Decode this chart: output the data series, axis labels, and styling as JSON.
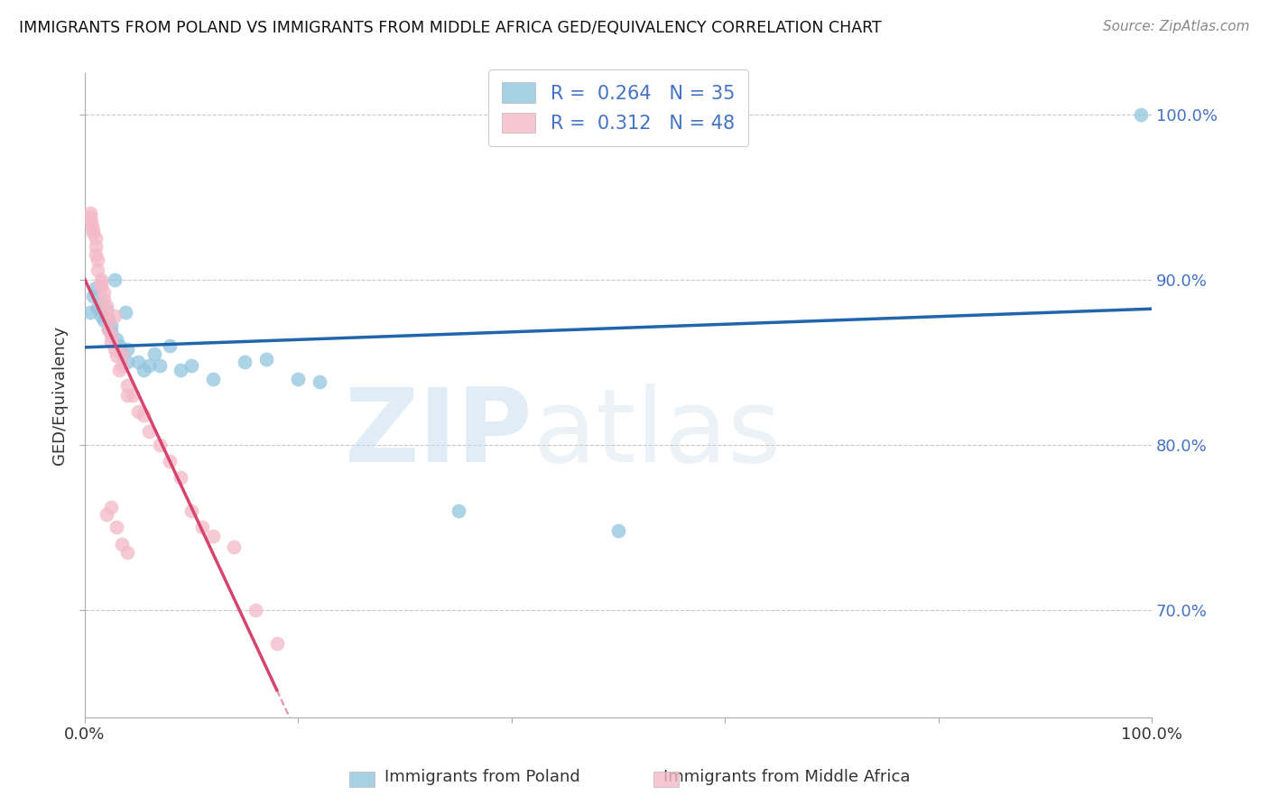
{
  "title": "IMMIGRANTS FROM POLAND VS IMMIGRANTS FROM MIDDLE AFRICA GED/EQUIVALENCY CORRELATION CHART",
  "source": "Source: ZipAtlas.com",
  "ylabel": "GED/Equivalency",
  "legend_label1": "Immigrants from Poland",
  "legend_label2": "Immigrants from Middle Africa",
  "R1": 0.264,
  "N1": 35,
  "R2": 0.312,
  "N2": 48,
  "color_blue": "#92c5de",
  "color_pink": "#f4b9c8",
  "line_blue": "#2166ac",
  "line_pink": "#d6446e",
  "watermark_zip": "ZIP",
  "watermark_atlas": "atlas",
  "xlim": [
    0.0,
    1.0
  ],
  "ylim": [
    0.635,
    1.025
  ],
  "blue_scatter_x": [
    0.005,
    0.008,
    0.01,
    0.012,
    0.015,
    0.015,
    0.018,
    0.02,
    0.022,
    0.022,
    0.025,
    0.025,
    0.028,
    0.03,
    0.032,
    0.035,
    0.038,
    0.04,
    0.04,
    0.05,
    0.055,
    0.06,
    0.065,
    0.07,
    0.08,
    0.09,
    0.1,
    0.12,
    0.15,
    0.17,
    0.2,
    0.22,
    0.35,
    0.5,
    0.99
  ],
  "blue_scatter_y": [
    0.88,
    0.89,
    0.895,
    0.883,
    0.878,
    0.886,
    0.875,
    0.882,
    0.87,
    0.876,
    0.872,
    0.868,
    0.9,
    0.864,
    0.86,
    0.856,
    0.88,
    0.85,
    0.858,
    0.85,
    0.845,
    0.848,
    0.855,
    0.848,
    0.86,
    0.845,
    0.848,
    0.84,
    0.85,
    0.852,
    0.84,
    0.838,
    0.76,
    0.748,
    1.0
  ],
  "pink_scatter_x": [
    0.005,
    0.005,
    0.006,
    0.007,
    0.008,
    0.008,
    0.01,
    0.01,
    0.01,
    0.012,
    0.012,
    0.015,
    0.015,
    0.015,
    0.018,
    0.018,
    0.02,
    0.02,
    0.022,
    0.022,
    0.025,
    0.025,
    0.028,
    0.028,
    0.03,
    0.032,
    0.035,
    0.035,
    0.04,
    0.04,
    0.045,
    0.05,
    0.055,
    0.06,
    0.07,
    0.08,
    0.09,
    0.1,
    0.11,
    0.12,
    0.14,
    0.16,
    0.18,
    0.02,
    0.025,
    0.03,
    0.035,
    0.04
  ],
  "pink_scatter_y": [
    0.94,
    0.938,
    0.935,
    0.932,
    0.93,
    0.928,
    0.925,
    0.92,
    0.915,
    0.912,
    0.906,
    0.9,
    0.898,
    0.896,
    0.892,
    0.888,
    0.884,
    0.88,
    0.876,
    0.87,
    0.866,
    0.862,
    0.878,
    0.858,
    0.854,
    0.845,
    0.855,
    0.848,
    0.836,
    0.83,
    0.83,
    0.82,
    0.818,
    0.808,
    0.8,
    0.79,
    0.78,
    0.76,
    0.75,
    0.745,
    0.738,
    0.7,
    0.68,
    0.758,
    0.762,
    0.75,
    0.74,
    0.735
  ]
}
